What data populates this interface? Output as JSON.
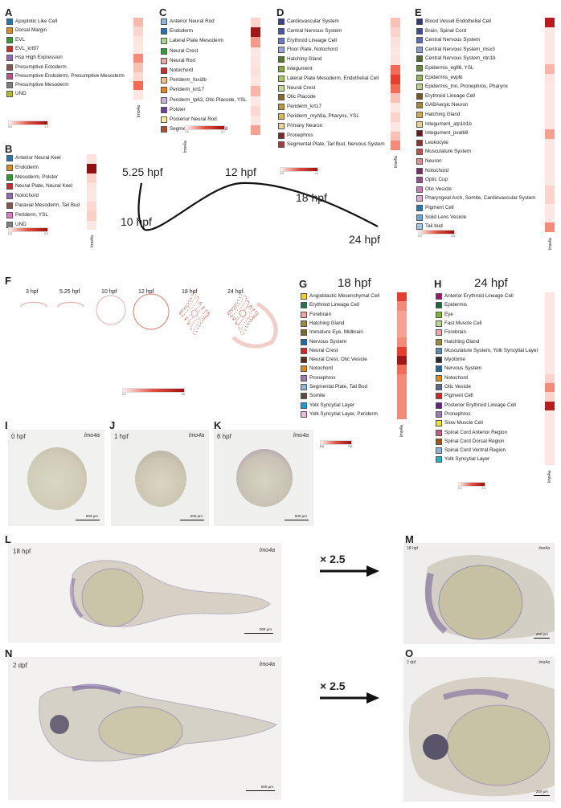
{
  "gene": "lmo4a",
  "panels": {
    "A": {
      "letter": "A",
      "rows": [
        {
          "label": "Apoptotic Like Cell",
          "swatch": "#1f77b4",
          "cell": "#f7b9ae"
        },
        {
          "label": "Dorsal Margin",
          "swatch": "#e08a18",
          "cell": "#fbd6cf"
        },
        {
          "label": "EVL",
          "swatch": "#2ca02c",
          "cell": "#fce4df"
        },
        {
          "label": "EVL_krt97",
          "swatch": "#d62728",
          "cell": "#fde7e3"
        },
        {
          "label": "Hsp High Expression",
          "swatch": "#9467bd",
          "cell": "#f58a78"
        },
        {
          "label": "Presumptive Ectoderm",
          "swatch": "#8c564b",
          "cell": "#f8c1b6"
        },
        {
          "label": "Presumptive Endoderm, Presumptive Mesoderm",
          "swatch": "#c24f8f",
          "cell": "#fbd8d1"
        },
        {
          "label": "Presumptive Mesoderm",
          "swatch": "#7f7f7f",
          "cell": "#f36a56"
        },
        {
          "label": "UND",
          "swatch": "#bcbd22",
          "cell": "#fde5e0"
        }
      ],
      "scale": [
        "0.0",
        "1.2"
      ]
    },
    "B": {
      "letter": "B",
      "rows": [
        {
          "label": "Anterior Neural Keel",
          "swatch": "#1f77b4",
          "cell": "#fce1dc"
        },
        {
          "label": "Endoderm",
          "swatch": "#e08a18",
          "cell": "#8e1010"
        },
        {
          "label": "Mesoderm, Polster",
          "swatch": "#2ca02c",
          "cell": "#fbd3cb"
        },
        {
          "label": "Neural Plate, Neural Keel",
          "swatch": "#d62728",
          "cell": "#fde4df"
        },
        {
          "label": "Notochord",
          "swatch": "#9467bd",
          "cell": "#fde7e3"
        },
        {
          "label": "Paraxial Mesoderm, Tail Bud",
          "swatch": "#8c564b",
          "cell": "#fbd8d1"
        },
        {
          "label": "Periderm, YSL",
          "swatch": "#e377c2",
          "cell": "#fbcfc6"
        },
        {
          "label": "UND",
          "swatch": "#7f7f7f",
          "cell": "#fde7e3"
        }
      ],
      "scale": [
        "0.0",
        "2.5"
      ]
    },
    "C": {
      "letter": "C",
      "rows": [
        {
          "label": "Anterior Neural Rod",
          "swatch": "#8ab5dc",
          "cell": "#fbd3cb"
        },
        {
          "label": "Endoderm",
          "swatch": "#1f77b4",
          "cell": "#a31616"
        },
        {
          "label": "Lateral Plate Mesoderm",
          "swatch": "#a6d98a",
          "cell": "#f59a88"
        },
        {
          "label": "Neural Crest",
          "swatch": "#2ca02c",
          "cell": "#fde7e3"
        },
        {
          "label": "Neural Rod",
          "swatch": "#f4a3a0",
          "cell": "#fde4df"
        },
        {
          "label": "Notochord",
          "swatch": "#d62728",
          "cell": "#fce0da"
        },
        {
          "label": "Periderm_foxi3b",
          "swatch": "#f5bf7d",
          "cell": "#fde7e3"
        },
        {
          "label": "Periderm_krt17",
          "swatch": "#ef7f10",
          "cell": "#f9b5a9"
        },
        {
          "label": "Periderm_tp63, Otic Placode, YSL",
          "swatch": "#c9b3dc",
          "cell": "#fde7e3"
        },
        {
          "label": "Polster",
          "swatch": "#6d3f9e",
          "cell": "#fbd8d1"
        },
        {
          "label": "Posterior Neural Rod",
          "swatch": "#f7ef9f",
          "cell": "#fde7e3"
        },
        {
          "label": "Segmental Plate, Tail Bud",
          "swatch": "#b0502e",
          "cell": "#f6a292"
        }
      ],
      "scale": [
        "0.0",
        "3.7"
      ]
    },
    "D": {
      "letter": "D",
      "rows": [
        {
          "label": "Cardiovascular System",
          "swatch": "#3a3f8f",
          "cell": "#f9c1b5"
        },
        {
          "label": "Central Nervous System",
          "swatch": "#4a56a8",
          "cell": "#fbd3cb"
        },
        {
          "label": "Erythroid Lineage Cell",
          "swatch": "#6a7ac6",
          "cell": "#fce0da"
        },
        {
          "label": "Floor Plate, Notochord",
          "swatch": "#9aa5db",
          "cell": "#fde7e3"
        },
        {
          "label": "Hatching Gland",
          "swatch": "#5a7a2a",
          "cell": "#fde4df"
        },
        {
          "label": "Integument",
          "swatch": "#8aa83a",
          "cell": "#f36a56"
        },
        {
          "label": "Lateral Plate Mesoderm, Endothelial Cell",
          "swatch": "#a8c860",
          "cell": "#e63d2d"
        },
        {
          "label": "Neural Crest",
          "swatch": "#c8dc98",
          "cell": "#f36a56"
        },
        {
          "label": "Otic Placode",
          "swatch": "#8a6a2a",
          "cell": "#f9c1b5"
        },
        {
          "label": "Periderm_krt17",
          "swatch": "#b89a3a",
          "cell": "#fde7e3"
        },
        {
          "label": "Periderm_myh9a, Pharynx, YSL",
          "swatch": "#d8b860",
          "cell": "#fbd3cb"
        },
        {
          "label": "Primary Neuron",
          "swatch": "#ead49a",
          "cell": "#fde7e3"
        },
        {
          "label": "Pronephros",
          "swatch": "#7a2a2a",
          "cell": "#f9c1b5"
        },
        {
          "label": "Segmental Plate, Tail Bud, Nervous System",
          "swatch": "#a83a3a",
          "cell": "#f58a78"
        }
      ],
      "scale": [
        "0.0",
        "1.4"
      ]
    },
    "E": {
      "letter": "E",
      "rows": [
        {
          "label": "Blood Vessel Endothelial Cell",
          "swatch": "#2e3a7a",
          "cell": "#b81c1c"
        },
        {
          "label": "Brain, Spinal Cord",
          "swatch": "#3a4a9a",
          "cell": "#fde7e3"
        },
        {
          "label": "Central Nervous System",
          "swatch": "#5a6ab8",
          "cell": "#fde7e3"
        },
        {
          "label": "Central Nervous System_msx3",
          "swatch": "#8a9ad0",
          "cell": "#fde7e3"
        },
        {
          "label": "Central Nervous System_ntn1b",
          "swatch": "#4e6a2a",
          "cell": "#fde7e3"
        },
        {
          "label": "Epidermis_egfl6, YSL",
          "swatch": "#6a8a3a",
          "cell": "#f9b5a9"
        },
        {
          "label": "Epidermis_evplb",
          "swatch": "#94b05a",
          "cell": "#fde4df"
        },
        {
          "label": "Epidermis_tnn, Pronephros, Pharynx",
          "swatch": "#b8cc8a",
          "cell": "#fde7e3"
        },
        {
          "label": "Erythroid Lineage Cell",
          "swatch": "#7a5a1a",
          "cell": "#fde7e3"
        },
        {
          "label": "GABAergic Neuron",
          "swatch": "#a8842a",
          "cell": "#fde7e3"
        },
        {
          "label": "Hatching Gland",
          "swatch": "#d0a84a",
          "cell": "#fde7e3"
        },
        {
          "label": "Integument_atp1b1b",
          "swatch": "#e8cc8a",
          "cell": "#fde7e3"
        },
        {
          "label": "Integument_pvalb8",
          "swatch": "#6a1a1a",
          "cell": "#f7a090"
        },
        {
          "label": "Leukocyte",
          "swatch": "#9a2e2e",
          "cell": "#fde7e3"
        },
        {
          "label": "Musculature System",
          "swatch": "#c84a4a",
          "cell": "#fde7e3"
        },
        {
          "label": "Neuron",
          "swatch": "#e48a8a",
          "cell": "#fde7e3"
        },
        {
          "label": "Notochord",
          "swatch": "#7a2a6a",
          "cell": "#fde7e3"
        },
        {
          "label": "Optic Cup",
          "swatch": "#9a4a8a",
          "cell": "#fde7e3"
        },
        {
          "label": "Otic Vesicle",
          "swatch": "#c87ab8",
          "cell": "#fbd3cb"
        },
        {
          "label": "Pharyngeal Arch, Somite, Cardiovascular System",
          "swatch": "#e0aad6",
          "cell": "#fbd3cb"
        },
        {
          "label": "Pigment Cell",
          "swatch": "#1f77b4",
          "cell": "#fde7e3"
        },
        {
          "label": "Solid Lens Vesicle",
          "swatch": "#6aa8d8",
          "cell": "#fde7e3"
        },
        {
          "label": "Tail bud",
          "swatch": "#9ac8e8",
          "cell": "#f58a78"
        }
      ],
      "scale": [
        "0.0",
        "3.5"
      ]
    },
    "G": {
      "letter": "G",
      "title": "18 hpf",
      "rows": [
        {
          "label": "Angioblastic Mesenchymal Cell",
          "swatch": "#f2d41a",
          "cell": "#e63d2d"
        },
        {
          "label": "Erythroid Lineage Cell",
          "swatch": "#1a7a4a",
          "cell": "#f58a78"
        },
        {
          "label": "Forebrain",
          "swatch": "#f4a3a0",
          "cell": "#f6a292"
        },
        {
          "label": "Hatching Gland",
          "swatch": "#9a8a3a",
          "cell": "#f6a292"
        },
        {
          "label": "Immature Eye, Midbrain",
          "swatch": "#7a6a2a",
          "cell": "#f6a292"
        },
        {
          "label": "Nervous System",
          "swatch": "#1f6aa8",
          "cell": "#f58a78"
        },
        {
          "label": "Neural Crest",
          "swatch": "#e02020",
          "cell": "#e63d2d"
        },
        {
          "label": "Neural Crest, Otic Vesicle",
          "swatch": "#5a2a1a",
          "cell": "#a31616"
        },
        {
          "label": "Notochord",
          "swatch": "#e08a18",
          "cell": "#f36a56"
        },
        {
          "label": "Pronephros",
          "swatch": "#9a7ab8",
          "cell": "#f58a78"
        },
        {
          "label": "Segmental Plate, Tail Bud",
          "swatch": "#8ab5dc",
          "cell": "#f58a78"
        },
        {
          "label": "Somite",
          "swatch": "#5a4a3a",
          "cell": "#f58a78"
        },
        {
          "label": "Yolk Syncytial Layer",
          "swatch": "#1a9ad8",
          "cell": "#f58a78"
        },
        {
          "label": "Yolk Syncytial Layer, Periderm",
          "swatch": "#f0b8d8",
          "cell": "#f58a78"
        }
      ],
      "scale": [
        "0.0",
        "7.2"
      ]
    },
    "H": {
      "letter": "H",
      "title": "24 hpf",
      "rows": [
        {
          "label": "Anterior Erythroid Lineage Cell",
          "swatch": "#a8126a",
          "cell": "#fde7e3"
        },
        {
          "label": "Epidermis",
          "swatch": "#1a6a3a",
          "cell": "#fde7e3"
        },
        {
          "label": "Eye",
          "swatch": "#7ab82a",
          "cell": "#fde7e3"
        },
        {
          "label": "Fast Muscle Cell",
          "swatch": "#b8d88a",
          "cell": "#fde7e3"
        },
        {
          "label": "Forebrain",
          "swatch": "#f4a3a0",
          "cell": "#fde7e3"
        },
        {
          "label": "Hatching Gland",
          "swatch": "#9a8a3a",
          "cell": "#fde7e3"
        },
        {
          "label": "Musculature System, Yolk Syncytial Layer",
          "swatch": "#5a8ab8",
          "cell": "#fde7e3"
        },
        {
          "label": "Myotome",
          "swatch": "#2a2a2a",
          "cell": "#fde7e3"
        },
        {
          "label": "Nervous System",
          "swatch": "#1f6aa8",
          "cell": "#fde7e3"
        },
        {
          "label": "Notochord",
          "swatch": "#e08a18",
          "cell": "#fbd3cb"
        },
        {
          "label": "Otic Vesicle",
          "swatch": "#5a6a8a",
          "cell": "#f58a78"
        },
        {
          "label": "Pigment Cell",
          "swatch": "#e02020",
          "cell": "#fbd3cb"
        },
        {
          "label": "Posterior Erythroid Lineage Cell",
          "swatch": "#6a1a8a",
          "cell": "#b81c1c"
        },
        {
          "label": "Pronephros",
          "swatch": "#9a7ab8",
          "cell": "#fde7e3"
        },
        {
          "label": "Slow Muscle Cell",
          "swatch": "#f2e41a",
          "cell": "#fde7e3"
        },
        {
          "label": "Spinal Cord Anterior Region",
          "swatch": "#c85a8a",
          "cell": "#fde7e3"
        },
        {
          "label": "Spinal Cord Dorsal Region",
          "swatch": "#a8521a",
          "cell": "#fde7e3"
        },
        {
          "label": "Spinal Cord Ventral Region",
          "swatch": "#8ab5dc",
          "cell": "#fde7e3"
        },
        {
          "label": "Yolk Syncytial Layer",
          "swatch": "#1ab8c8",
          "cell": "#fde7e3"
        }
      ],
      "scale": [
        "0.1",
        "2.4"
      ]
    }
  },
  "timeline": {
    "labels": {
      "t525": "5.25 hpf",
      "t12": "12 hpf",
      "t18": "18 hpf",
      "t24": "24 hpf",
      "t10": "10 hpf"
    }
  },
  "panel_F": {
    "letter": "F",
    "stages": [
      "3 hpf",
      "5.25 hpf",
      "10 hpf",
      "12 hpf",
      "18 hpf",
      "24 hpf"
    ],
    "scale": [
      "0.0",
      "4.5"
    ]
  },
  "ish": {
    "I": {
      "letter": "I",
      "stage": "0 hpf",
      "scalebar": "500 μm"
    },
    "J": {
      "letter": "J",
      "stage": "1 hpf",
      "scalebar": "500 μm"
    },
    "K": {
      "letter": "K",
      "stage": "6 hpf",
      "scalebar": "500 μm"
    },
    "K_scale": [
      "0.0",
      "7.2"
    ],
    "L": {
      "letter": "L",
      "stage": "18 hpf",
      "scalebar": "500 μm"
    },
    "M": {
      "letter": "M",
      "stage": "18 hpf",
      "scalebar": "200 μm"
    },
    "N": {
      "letter": "N",
      "stage": "2 dpf",
      "scalebar": "500 μm"
    },
    "O": {
      "letter": "O",
      "stage": "2 dpf",
      "scalebar": "200 μm"
    },
    "zoom": "× 2.5"
  }
}
